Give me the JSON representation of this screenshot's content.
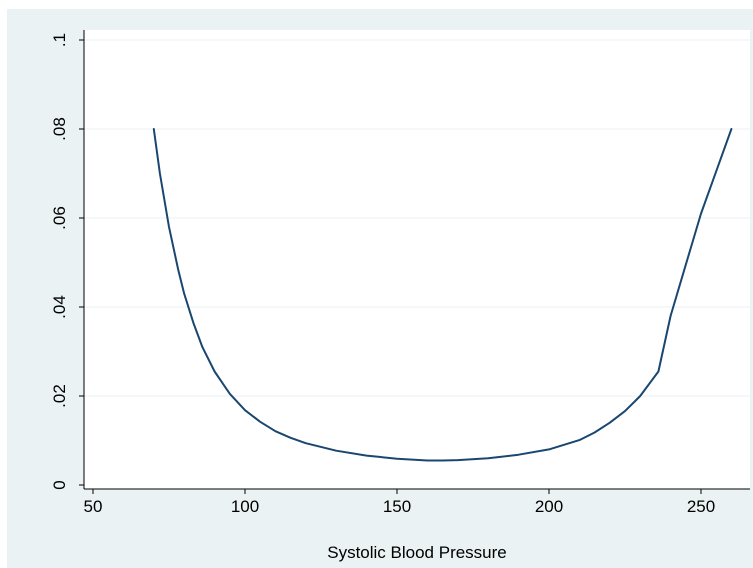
{
  "chart_data": {
    "type": "line",
    "title": "",
    "xlabel": "Systolic Blood Pressure",
    "ylabel": "",
    "xlim": [
      47,
      262
    ],
    "ylim": [
      0,
      0.1
    ],
    "xticks": [
      50,
      100,
      150,
      200,
      250
    ],
    "yticks": [
      0,
      0.02,
      0.04,
      0.06,
      0.08,
      0.1
    ],
    "xtick_labels": [
      "50",
      "100",
      "150",
      "200",
      "250"
    ],
    "ytick_labels": [
      "0",
      ".02",
      ".04",
      ".06",
      ".08",
      ".1"
    ],
    "grid": true,
    "legend": "none",
    "colors": {
      "background": "#eaf2f3",
      "plot_area": "#ffffff",
      "gridline": "#eaf2f3",
      "line": "#1a476f"
    },
    "series": [
      {
        "x": [
          70,
          72,
          75,
          78,
          80,
          83,
          86,
          90,
          95,
          100,
          105,
          110,
          115,
          120,
          130,
          140,
          150,
          160,
          165,
          170,
          180,
          190,
          200,
          210,
          215,
          220,
          225,
          230,
          236,
          240,
          245,
          250,
          255,
          260
        ],
        "y": [
          0.08,
          0.07,
          0.058,
          0.0485,
          0.043,
          0.0365,
          0.031,
          0.0255,
          0.0205,
          0.0168,
          0.0142,
          0.0121,
          0.0106,
          0.0094,
          0.0077,
          0.0066,
          0.0059,
          0.0055,
          0.0055,
          0.0056,
          0.006,
          0.0068,
          0.008,
          0.0101,
          0.0118,
          0.014,
          0.0166,
          0.02,
          0.0255,
          0.038,
          0.0495,
          0.061,
          0.0705,
          0.08
        ]
      }
    ]
  }
}
